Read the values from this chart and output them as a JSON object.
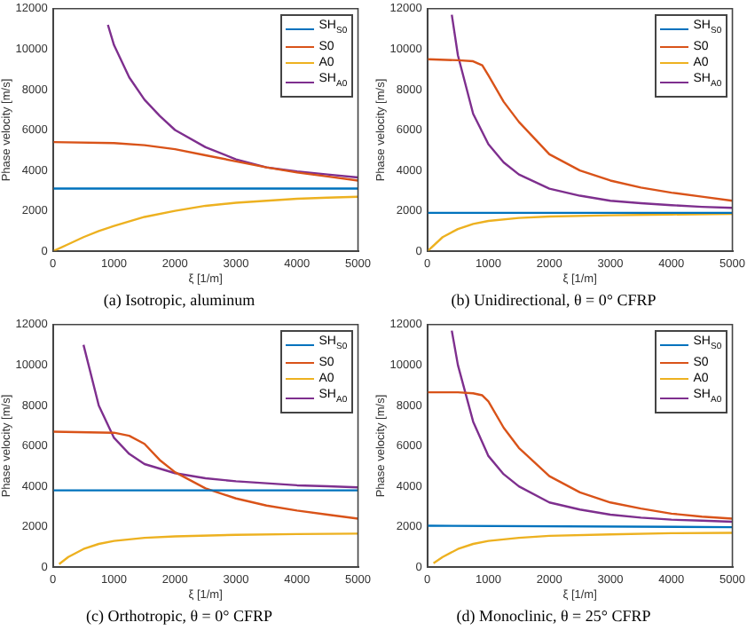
{
  "chart_data": [
    {
      "type": "line",
      "title": "(a) Isotropic, aluminum",
      "xlabel": "ξ [1/m]",
      "ylabel": "Phase velocity [m/s]",
      "xlim": [
        0,
        5000
      ],
      "ylim": [
        0,
        12000
      ],
      "xticks": [
        0,
        1000,
        2000,
        3000,
        4000,
        5000
      ],
      "yticks": [
        0,
        2000,
        4000,
        6000,
        8000,
        10000,
        12000
      ],
      "grid": false,
      "legend": "top right",
      "marker": "none",
      "line_style": "solid",
      "series": [
        {
          "name": "SH$_{S0}$",
          "color": "#0072bd",
          "x": [
            0,
            5000
          ],
          "values": [
            3100,
            3100
          ]
        },
        {
          "name": "S0",
          "color": "#d95319",
          "x": [
            0,
            1000,
            1500,
            2000,
            2500,
            3000,
            3500,
            4000,
            4500,
            5000
          ],
          "values": [
            5400,
            5350,
            5250,
            5050,
            4750,
            4450,
            4150,
            3900,
            3700,
            3500
          ]
        },
        {
          "name": "A0",
          "color": "#edb120",
          "x": [
            0,
            250,
            500,
            750,
            1000,
            1500,
            2000,
            2500,
            3000,
            3500,
            4000,
            4500,
            5000
          ],
          "values": [
            0,
            350,
            700,
            1000,
            1250,
            1700,
            2000,
            2250,
            2400,
            2500,
            2600,
            2650,
            2700
          ]
        },
        {
          "name": "SH$_{A0}$",
          "color": "#7e2f8e",
          "x": [
            900,
            1000,
            1250,
            1500,
            1750,
            2000,
            2500,
            3000,
            3500,
            4000,
            4500,
            5000
          ],
          "values": [
            11200,
            10200,
            8600,
            7500,
            6700,
            6000,
            5150,
            4550,
            4150,
            3950,
            3800,
            3650
          ]
        }
      ]
    },
    {
      "type": "line",
      "title": "(b) Unidirectional, θ = 0° CFRP",
      "xlabel": "ξ [1/m]",
      "ylabel": "Phase velocity [m/s]",
      "xlim": [
        0,
        5000
      ],
      "ylim": [
        0,
        12000
      ],
      "xticks": [
        0,
        1000,
        2000,
        3000,
        4000,
        5000
      ],
      "yticks": [
        0,
        2000,
        4000,
        6000,
        8000,
        10000,
        12000
      ],
      "grid": false,
      "legend": "top right",
      "marker": "none",
      "line_style": "solid",
      "series": [
        {
          "name": "SH$_{S0}$",
          "color": "#0072bd",
          "x": [
            0,
            5000
          ],
          "values": [
            1900,
            1900
          ]
        },
        {
          "name": "S0",
          "color": "#d95319",
          "x": [
            0,
            500,
            750,
            900,
            1000,
            1250,
            1500,
            2000,
            2500,
            3000,
            3500,
            4000,
            4500,
            5000
          ],
          "values": [
            9500,
            9450,
            9400,
            9200,
            8700,
            7400,
            6400,
            4800,
            4000,
            3500,
            3150,
            2900,
            2700,
            2500
          ]
        },
        {
          "name": "A0",
          "color": "#edb120",
          "x": [
            0,
            250,
            500,
            750,
            1000,
            1500,
            2000,
            3000,
            4000,
            5000
          ],
          "values": [
            0,
            700,
            1100,
            1350,
            1500,
            1650,
            1720,
            1780,
            1820,
            1850
          ]
        },
        {
          "name": "SH$_{A0}$",
          "color": "#7e2f8e",
          "x": [
            400,
            500,
            750,
            1000,
            1250,
            1500,
            2000,
            2500,
            3000,
            3500,
            4000,
            4500,
            5000
          ],
          "values": [
            11700,
            9700,
            6800,
            5300,
            4400,
            3800,
            3100,
            2750,
            2500,
            2380,
            2280,
            2200,
            2150
          ]
        }
      ]
    },
    {
      "type": "line",
      "title": "(c) Orthotropic, θ = 0° CFRP",
      "xlabel": "ξ [1/m]",
      "ylabel": "Phase velocity [m/s]",
      "xlim": [
        0,
        5000
      ],
      "ylim": [
        0,
        12000
      ],
      "xticks": [
        0,
        1000,
        2000,
        3000,
        4000,
        5000
      ],
      "yticks": [
        0,
        2000,
        4000,
        6000,
        8000,
        10000,
        12000
      ],
      "grid": false,
      "legend": "top right",
      "marker": "none",
      "line_style": "solid",
      "series": [
        {
          "name": "SH$_{S0}$",
          "color": "#0072bd",
          "x": [
            0,
            5000
          ],
          "values": [
            3800,
            3800
          ]
        },
        {
          "name": "S0",
          "color": "#d95319",
          "x": [
            0,
            1000,
            1250,
            1500,
            1750,
            2000,
            2500,
            3000,
            3500,
            4000,
            4500,
            5000
          ],
          "values": [
            6700,
            6650,
            6500,
            6100,
            5300,
            4700,
            3900,
            3400,
            3050,
            2800,
            2600,
            2400
          ]
        },
        {
          "name": "A0",
          "color": "#edb120",
          "x": [
            100,
            250,
            500,
            750,
            1000,
            1500,
            2000,
            3000,
            4000,
            5000
          ],
          "values": [
            150,
            500,
            900,
            1150,
            1300,
            1450,
            1520,
            1600,
            1640,
            1660
          ]
        },
        {
          "name": "SH$_{A0}$",
          "color": "#7e2f8e",
          "x": [
            500,
            750,
            1000,
            1250,
            1500,
            2000,
            2500,
            3000,
            3500,
            4000,
            4500,
            5000
          ],
          "values": [
            11000,
            8000,
            6400,
            5600,
            5100,
            4650,
            4400,
            4250,
            4150,
            4050,
            4000,
            3950
          ]
        }
      ]
    },
    {
      "type": "line",
      "title": "(d) Monoclinic, θ = 25° CFRP",
      "xlabel": "ξ [1/m]",
      "ylabel": "Phase velocity [m/s]",
      "xlim": [
        0,
        5000
      ],
      "ylim": [
        0,
        12000
      ],
      "xticks": [
        0,
        1000,
        2000,
        3000,
        4000,
        5000
      ],
      "yticks": [
        0,
        2000,
        4000,
        6000,
        8000,
        10000,
        12000
      ],
      "grid": false,
      "legend": "top right",
      "marker": "none",
      "line_style": "solid",
      "series": [
        {
          "name": "SH$_{S0}$",
          "color": "#0072bd",
          "x": [
            0,
            5000
          ],
          "values": [
            2050,
            1980
          ]
        },
        {
          "name": "S0",
          "color": "#d95319",
          "x": [
            0,
            500,
            750,
            900,
            1000,
            1250,
            1500,
            2000,
            2500,
            3000,
            3500,
            4000,
            4500,
            5000
          ],
          "values": [
            8650,
            8650,
            8600,
            8500,
            8200,
            6900,
            5900,
            4500,
            3700,
            3200,
            2900,
            2650,
            2500,
            2400
          ]
        },
        {
          "name": "A0",
          "color": "#edb120",
          "x": [
            100,
            250,
            500,
            750,
            1000,
            1500,
            2000,
            3000,
            4000,
            5000
          ],
          "values": [
            200,
            500,
            900,
            1150,
            1300,
            1450,
            1550,
            1620,
            1680,
            1700
          ]
        },
        {
          "name": "SH$_{A0}$",
          "color": "#7e2f8e",
          "x": [
            400,
            500,
            750,
            1000,
            1250,
            1500,
            2000,
            2500,
            3000,
            3500,
            4000,
            4500,
            5000
          ],
          "values": [
            11700,
            10000,
            7200,
            5500,
            4600,
            4000,
            3200,
            2850,
            2600,
            2450,
            2350,
            2300,
            2250
          ]
        }
      ]
    }
  ]
}
